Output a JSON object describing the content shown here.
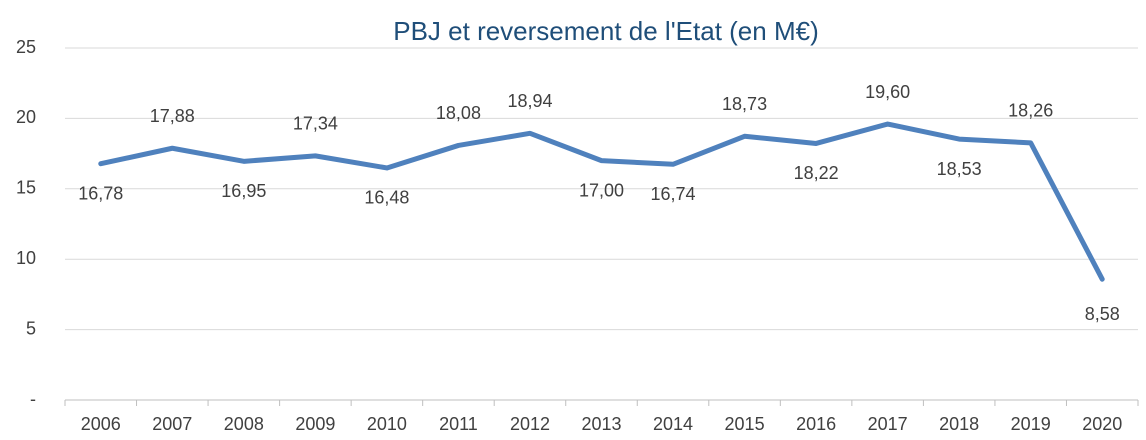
{
  "chart_data": {
    "type": "line",
    "title": "PBJ et reversement de l'Etat (en M€)",
    "categories": [
      "2006",
      "2007",
      "2008",
      "2009",
      "2010",
      "2011",
      "2012",
      "2013",
      "2014",
      "2015",
      "2016",
      "2017",
      "2018",
      "2019",
      "2020"
    ],
    "series": [
      {
        "color": "#4f81bd",
        "values": [
          16.78,
          17.88,
          16.95,
          17.34,
          16.48,
          18.08,
          18.94,
          17.0,
          16.74,
          18.73,
          18.22,
          19.6,
          18.53,
          18.26,
          8.58
        ],
        "value_labels": [
          "16,78",
          "17,88",
          "16,95",
          "17,34",
          "16,48",
          "18,08",
          "18,94",
          "17,00",
          "16,74",
          "18,73",
          "18,22",
          "19,60",
          "18,53",
          "18,26",
          "8,58"
        ]
      }
    ],
    "ylim": [
      0,
      25
    ],
    "yticks": [
      {
        "value": 0,
        "label": "-"
      },
      5,
      10,
      15,
      20,
      25
    ],
    "grid": true
  }
}
